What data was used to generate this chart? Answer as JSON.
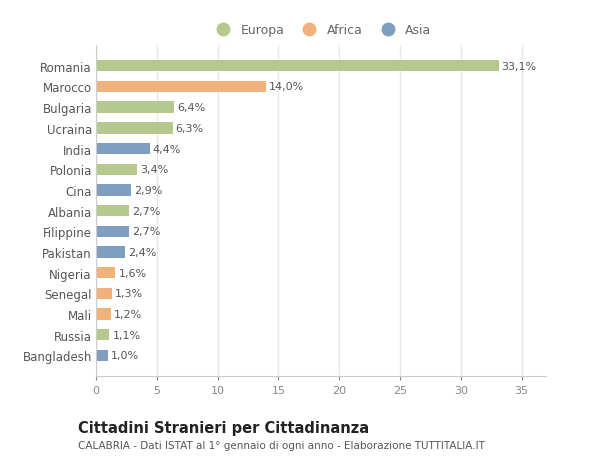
{
  "countries": [
    "Romania",
    "Marocco",
    "Bulgaria",
    "Ucraina",
    "India",
    "Polonia",
    "Cina",
    "Albania",
    "Filippine",
    "Pakistan",
    "Nigeria",
    "Senegal",
    "Mali",
    "Russia",
    "Bangladesh"
  ],
  "values": [
    33.1,
    14.0,
    6.4,
    6.3,
    4.4,
    3.4,
    2.9,
    2.7,
    2.7,
    2.4,
    1.6,
    1.3,
    1.2,
    1.1,
    1.0
  ],
  "labels": [
    "33,1%",
    "14,0%",
    "6,4%",
    "6,3%",
    "4,4%",
    "3,4%",
    "2,9%",
    "2,7%",
    "2,7%",
    "2,4%",
    "1,6%",
    "1,3%",
    "1,2%",
    "1,1%",
    "1,0%"
  ],
  "continent": [
    "Europa",
    "Africa",
    "Europa",
    "Europa",
    "Asia",
    "Europa",
    "Asia",
    "Europa",
    "Asia",
    "Asia",
    "Africa",
    "Africa",
    "Africa",
    "Europa",
    "Asia"
  ],
  "colors": {
    "Europa": "#b5c98e",
    "Africa": "#f0b27a",
    "Asia": "#7f9ec0"
  },
  "xlim": [
    0,
    37
  ],
  "xticks": [
    0,
    5,
    10,
    15,
    20,
    25,
    30,
    35
  ],
  "title": "Cittadini Stranieri per Cittadinanza",
  "subtitle": "CALABRIA - Dati ISTAT al 1° gennaio di ogni anno - Elaborazione TUTTITALIA.IT",
  "background_color": "#ffffff",
  "grid_color": "#e8e8e8",
  "bar_height": 0.55,
  "label_fontsize": 8.0,
  "ytick_fontsize": 8.5,
  "xtick_fontsize": 8.0,
  "title_fontsize": 10.5,
  "subtitle_fontsize": 7.5
}
